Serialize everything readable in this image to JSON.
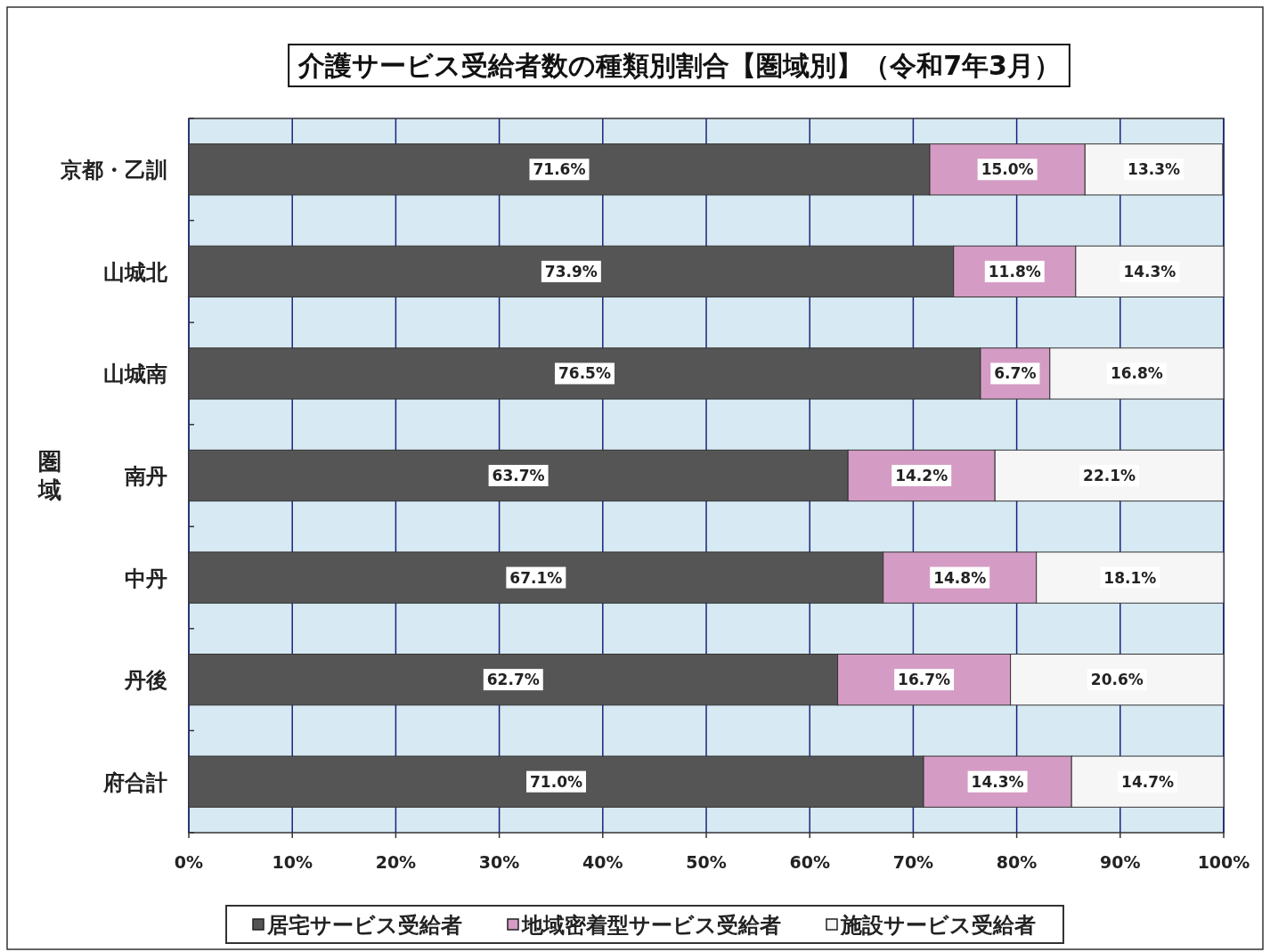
{
  "chart_data": {
    "type": "bar",
    "orientation": "horizontal",
    "stacked": true,
    "title": "介護サービス受給者数の種類別割合【圏域別】（令和7年3月）",
    "ylabel": "圏域",
    "categories": [
      "京都・乙訓",
      "山城北",
      "山城南",
      "南丹",
      "中丹",
      "丹後",
      "府合計"
    ],
    "series": [
      {
        "name": "居宅サービス受給者",
        "color": "#555555",
        "values": [
          71.6,
          73.9,
          76.5,
          63.7,
          67.1,
          62.7,
          71.0
        ],
        "value_labels": [
          "71.6%",
          "73.9%",
          "76.5%",
          "63.7%",
          "67.1%",
          "62.7%",
          "71.0%"
        ]
      },
      {
        "name": "地域密着型サービス受給者",
        "color": "#d49cc4",
        "values": [
          15.0,
          11.8,
          6.7,
          14.2,
          14.8,
          16.7,
          14.3
        ],
        "value_labels": [
          "15.0%",
          "11.8%",
          "6.7%",
          "14.2%",
          "14.8%",
          "16.7%",
          "14.3%"
        ]
      },
      {
        "name": "施設サービス受給者",
        "color": "#f6f6f6",
        "values": [
          13.3,
          14.3,
          16.8,
          22.1,
          18.1,
          20.6,
          14.7
        ],
        "value_labels": [
          "13.3%",
          "14.3%",
          "16.8%",
          "22.1%",
          "18.1%",
          "20.6%",
          "14.7%"
        ]
      }
    ],
    "xlim": [
      0,
      100
    ],
    "xticks": [
      {
        "value": 0,
        "label": "0%"
      },
      {
        "value": 10,
        "label": "10%"
      },
      {
        "value": 20,
        "label": "20%"
      },
      {
        "value": 30,
        "label": "30%"
      },
      {
        "value": 40,
        "label": "40%"
      },
      {
        "value": 50,
        "label": "50%"
      },
      {
        "value": 60,
        "label": "60%"
      },
      {
        "value": 70,
        "label": "70%"
      },
      {
        "value": 80,
        "label": "80%"
      },
      {
        "value": 90,
        "label": "90%"
      },
      {
        "value": 100,
        "label": "100%"
      }
    ],
    "grid": "x",
    "legend": "bottom"
  }
}
